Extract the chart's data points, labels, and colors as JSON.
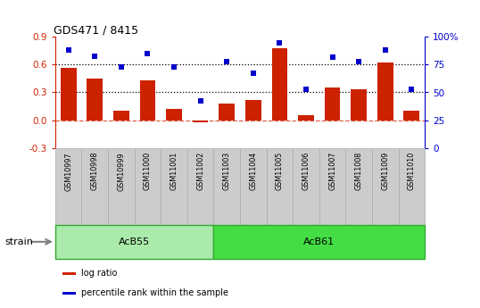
{
  "title": "GDS471 / 8415",
  "samples": [
    "GSM10997",
    "GSM10998",
    "GSM10999",
    "GSM11000",
    "GSM11001",
    "GSM11002",
    "GSM11003",
    "GSM11004",
    "GSM11005",
    "GSM11006",
    "GSM11007",
    "GSM11008",
    "GSM11009",
    "GSM11010"
  ],
  "log_ratio": [
    0.57,
    0.45,
    0.1,
    0.43,
    0.12,
    -0.02,
    0.18,
    0.22,
    0.78,
    0.05,
    0.35,
    0.33,
    0.62,
    0.1
  ],
  "percentile": [
    88,
    83,
    73,
    85,
    73,
    42,
    78,
    67,
    95,
    53,
    82,
    78,
    88,
    53
  ],
  "groups": [
    {
      "name": "AcB55",
      "start": 0,
      "end": 6,
      "color": "#aaeaaa"
    },
    {
      "name": "AcB61",
      "start": 6,
      "end": 14,
      "color": "#44dd44"
    }
  ],
  "bar_color": "#cc2200",
  "dot_color": "#0000cc",
  "bg_color": "#ffffff",
  "ylim_left": [
    -0.3,
    0.9
  ],
  "ylim_right": [
    0,
    100
  ],
  "yticks_left": [
    -0.3,
    0.0,
    0.3,
    0.6,
    0.9
  ],
  "yticks_right": [
    0,
    25,
    50,
    75,
    100
  ],
  "yticklabels_right": [
    "0",
    "25",
    "50",
    "75",
    "100%"
  ],
  "hlines": [
    0.3,
    0.6
  ],
  "dashed_hline_y": 0.0,
  "strain_label": "strain",
  "legend_items": [
    {
      "label": "log ratio",
      "color": "#cc2200"
    },
    {
      "label": "percentile rank within the sample",
      "color": "#0000cc"
    }
  ],
  "label_box_color": "#cccccc",
  "label_box_edge": "#aaaaaa",
  "group_edge_color": "#33aa33"
}
